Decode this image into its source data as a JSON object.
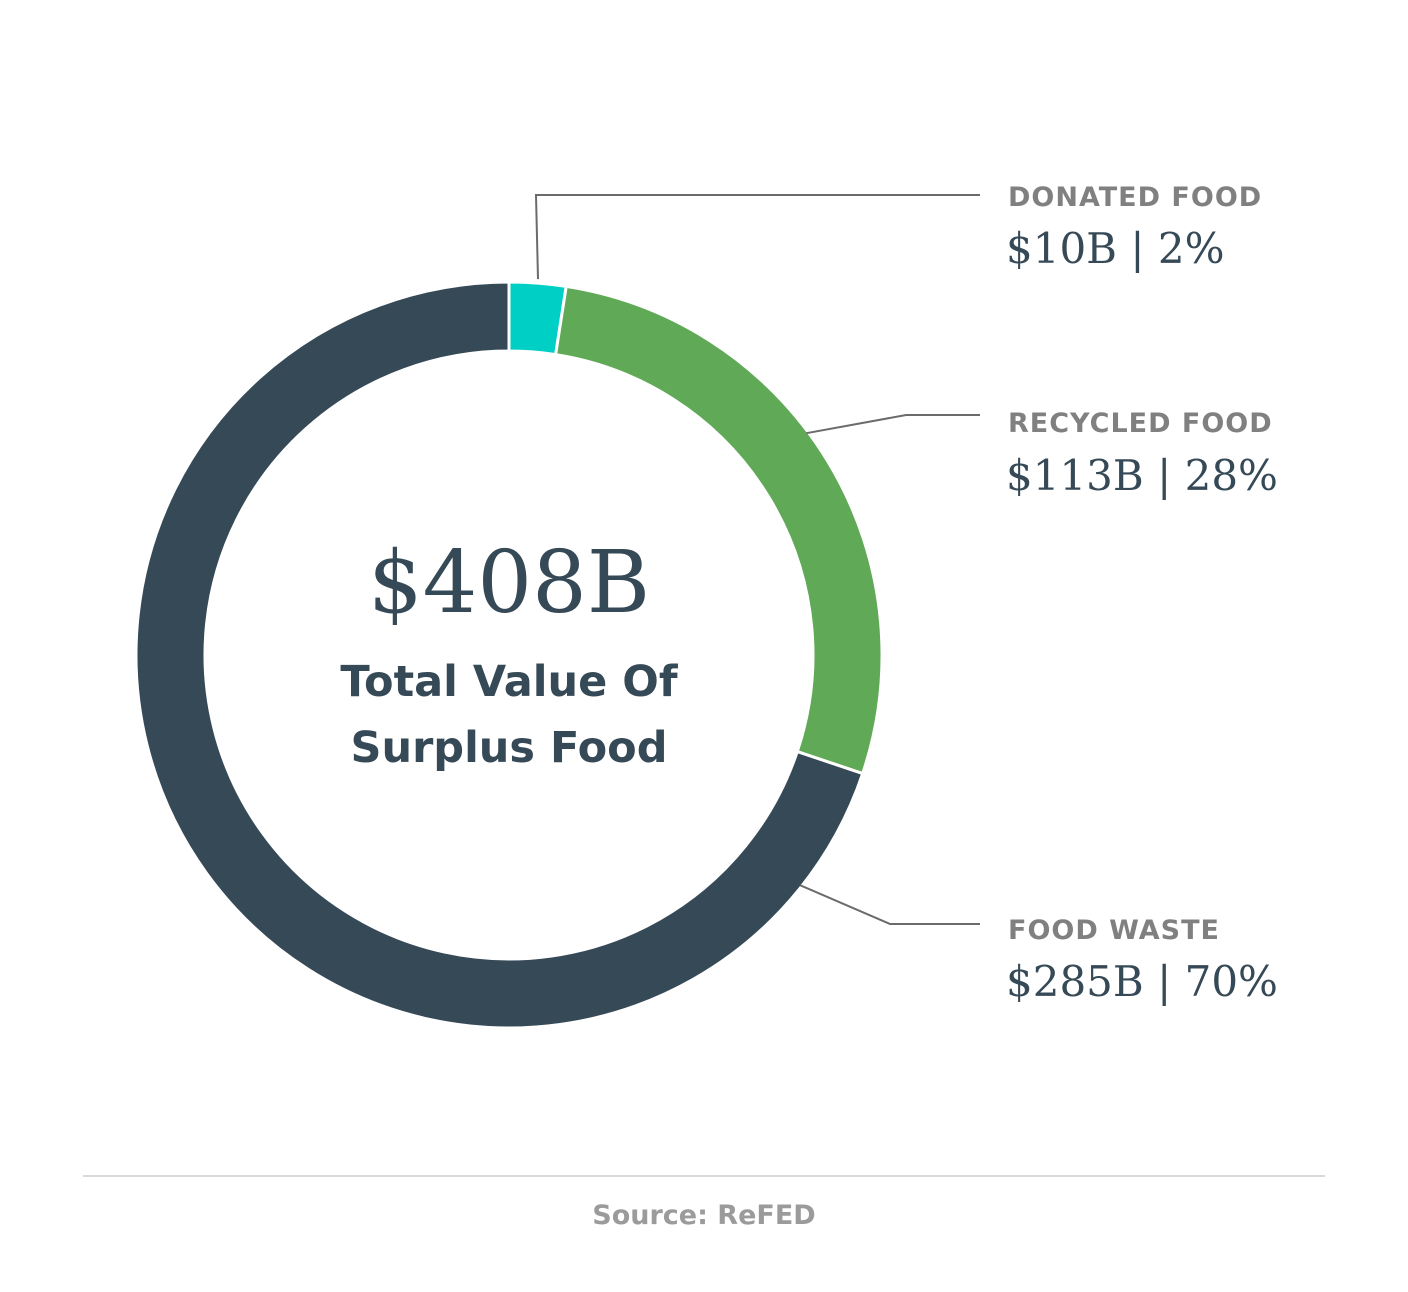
{
  "chart_data": {
    "type": "pie",
    "variant": "donut",
    "center_value": "$408B",
    "center_label": [
      "Total Value Of",
      "Surplus Food"
    ],
    "total": 408,
    "unit": "$B",
    "slices": [
      {
        "name": "DONATED FOOD",
        "value": 10,
        "percent": 2,
        "value_label": "$10B | 2%",
        "color": "#00cfc5"
      },
      {
        "name": "RECYCLED FOOD",
        "value": 113,
        "percent": 28,
        "value_label": "$113B | 28%",
        "color": "#60a957"
      },
      {
        "name": "FOOD WASTE",
        "value": 285,
        "percent": 70,
        "value_label": "$285B | 70%",
        "color": "#364957"
      }
    ],
    "legend_placement": "right",
    "start_angle_from_top_deg": 0,
    "direction": "clockwise",
    "colors": {
      "text_dark": "#364957",
      "text_gray": "#808080",
      "leader_line": "#6b6b6b"
    }
  },
  "footer": {
    "source": "Source: ReFED"
  }
}
